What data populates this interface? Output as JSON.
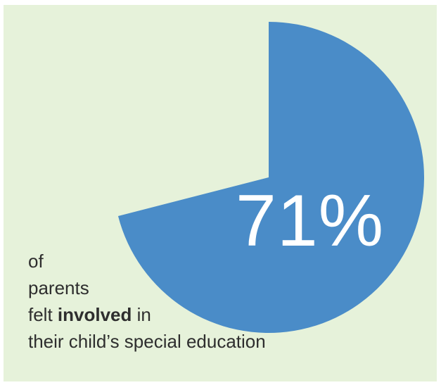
{
  "chart_data": {
    "type": "pie",
    "title": "",
    "slices": [
      {
        "label": "felt involved",
        "value": 71,
        "color": "#4a8cc8",
        "shown": true
      },
      {
        "label": "",
        "value": 29,
        "color": "#e6f2da",
        "shown": false
      }
    ]
  },
  "big_label": "71%",
  "caption": {
    "line1": "of",
    "line2": "parents",
    "line3_pre": "felt ",
    "line3_bold": "involved",
    "line3_post": " in",
    "line4": "their child’s special education"
  },
  "colors": {
    "background": "#e6f2da",
    "slice": "#4a8cc8",
    "big_label": "#ffffff",
    "caption_text": "#2e2e2e"
  }
}
